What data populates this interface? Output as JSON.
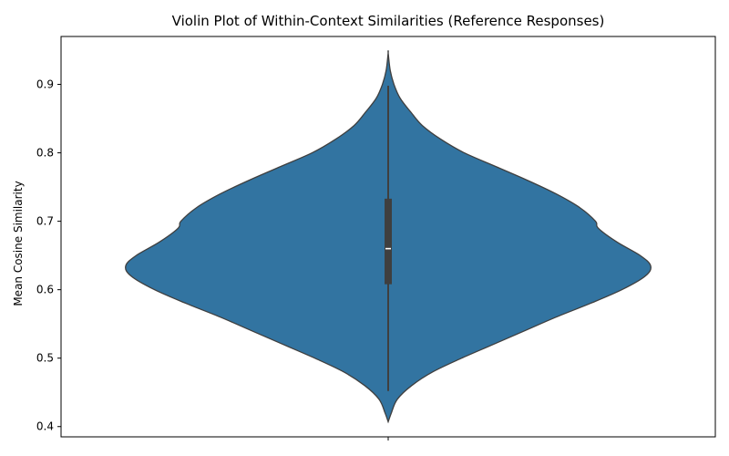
{
  "chart_data": {
    "type": "violin",
    "title": "Violin Plot of Within-Context Similarities (Reference Responses)",
    "xlabel": "",
    "ylabel": "Mean Cosine Similarity",
    "ylim": [
      0.385,
      0.97
    ],
    "yticks": [
      0.4,
      0.5,
      0.6,
      0.7,
      0.8,
      0.9
    ],
    "ytick_labels": [
      "0.4",
      "0.5",
      "0.6",
      "0.7",
      "0.8",
      "0.9"
    ],
    "grid": false,
    "legend": "none",
    "colors": {
      "fill": "#3274a1",
      "outline": "#3f3f3f",
      "box": "#3f3f3f",
      "median": "#ffffff"
    },
    "violin": {
      "density_profile": [
        [
          0.407,
          0.0
        ],
        [
          0.42,
          0.012
        ],
        [
          0.44,
          0.035
        ],
        [
          0.46,
          0.09
        ],
        [
          0.48,
          0.17
        ],
        [
          0.5,
          0.28
        ],
        [
          0.52,
          0.4
        ],
        [
          0.54,
          0.52
        ],
        [
          0.56,
          0.64
        ],
        [
          0.58,
          0.77
        ],
        [
          0.6,
          0.89
        ],
        [
          0.62,
          0.98
        ],
        [
          0.635,
          1.0
        ],
        [
          0.65,
          0.96
        ],
        [
          0.67,
          0.87
        ],
        [
          0.69,
          0.8
        ],
        [
          0.7,
          0.79
        ],
        [
          0.72,
          0.73
        ],
        [
          0.74,
          0.64
        ],
        [
          0.76,
          0.53
        ],
        [
          0.78,
          0.41
        ],
        [
          0.8,
          0.29
        ],
        [
          0.82,
          0.2
        ],
        [
          0.84,
          0.13
        ],
        [
          0.86,
          0.085
        ],
        [
          0.88,
          0.045
        ],
        [
          0.9,
          0.022
        ],
        [
          0.92,
          0.008
        ],
        [
          0.946,
          0.0
        ]
      ],
      "whisker_low": 0.452,
      "q1": 0.608,
      "median": 0.66,
      "q3": 0.733,
      "whisker_high": 0.898
    }
  }
}
